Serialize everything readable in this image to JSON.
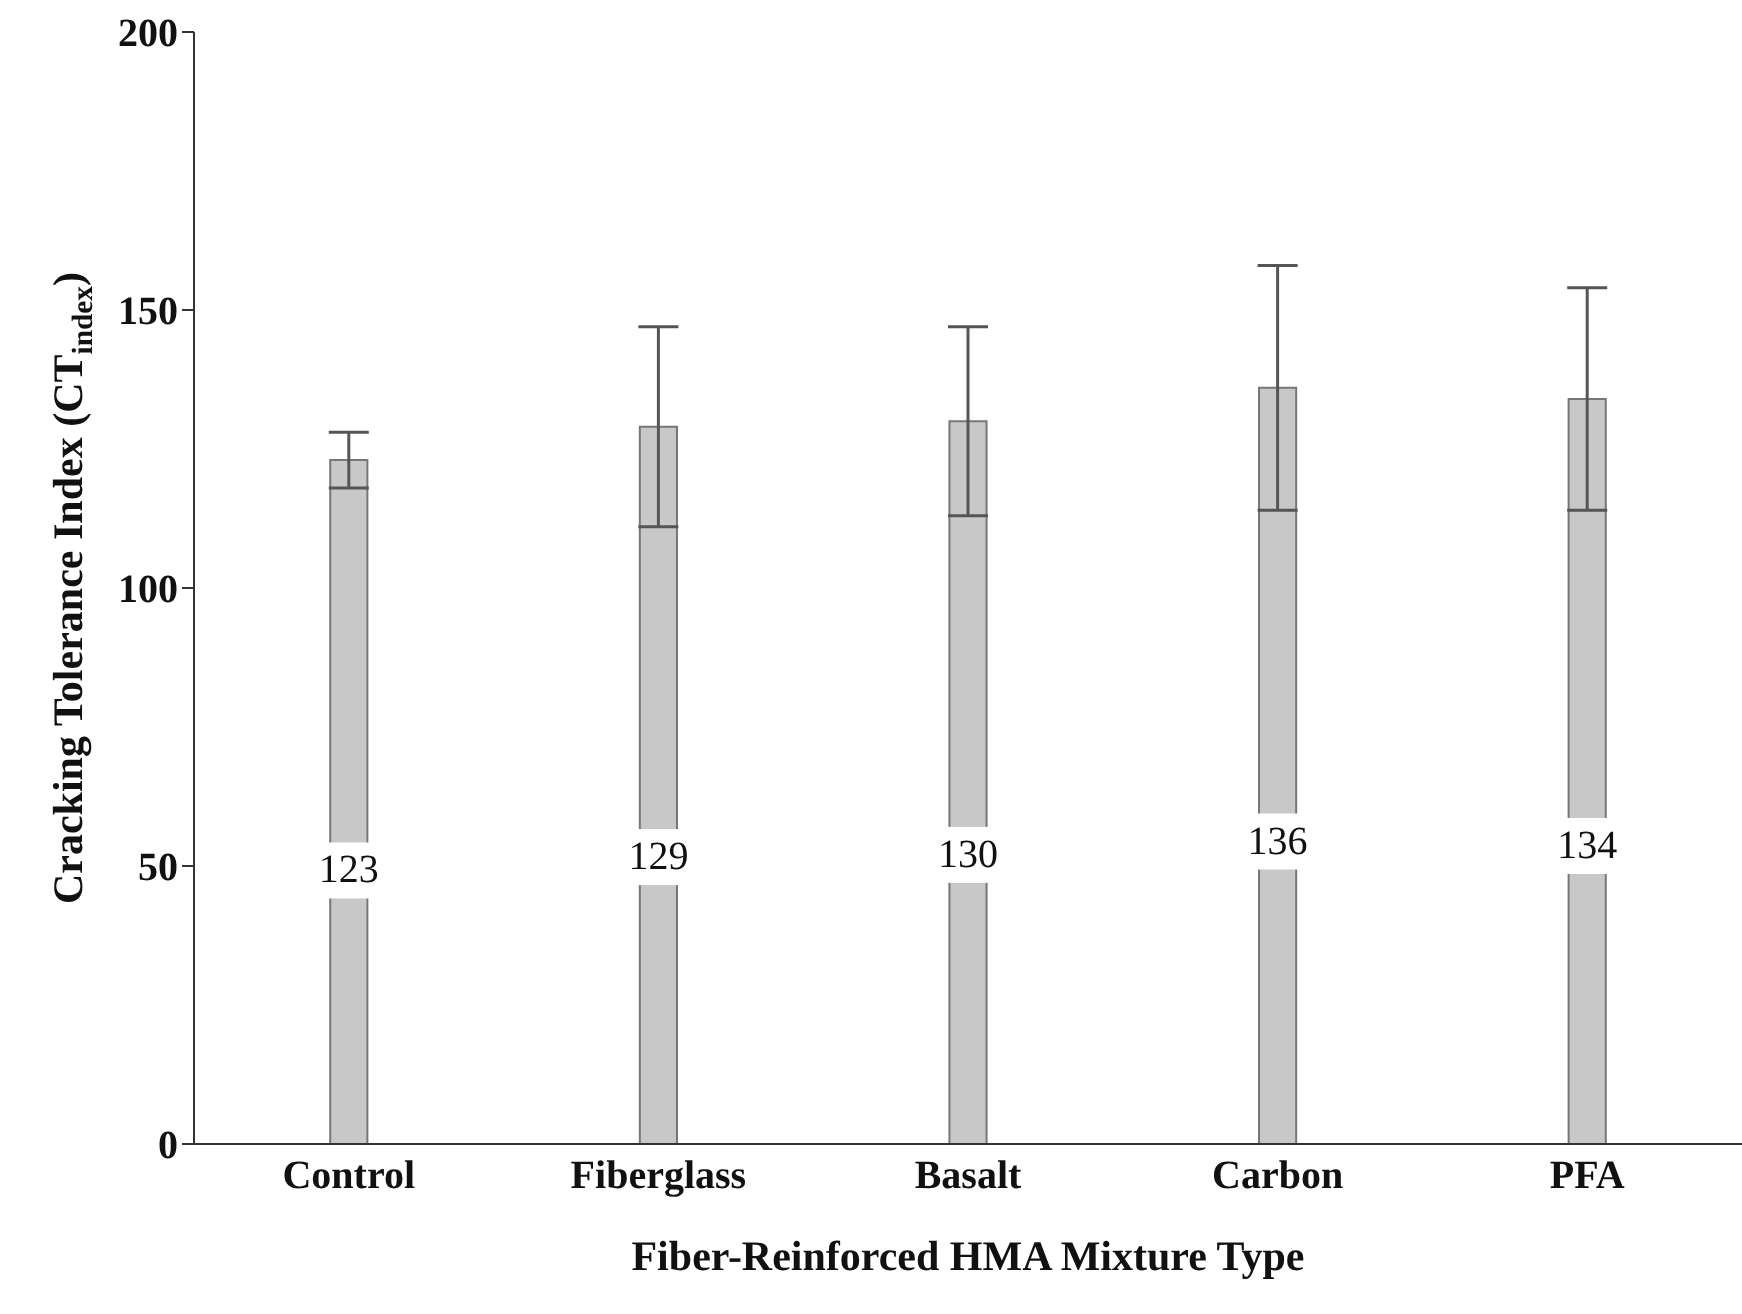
{
  "chart_data": {
    "type": "bar",
    "xlabel": "Fiber-Reinforced HMA Mixture Type",
    "ylabel": "Cracking Tolerance Index (CT$_{index}$)",
    "categories": [
      "Control",
      "Fiberglass",
      "Basalt",
      "Carbon",
      "PFA"
    ],
    "values": [
      123,
      129,
      130,
      136,
      134
    ],
    "errors": [
      5,
      18,
      17,
      22,
      20
    ],
    "color": "#c8c8c8",
    "ylim": [
      0,
      200
    ],
    "yticks": [
      0,
      50,
      100,
      150,
      200
    ],
    "data_labels": true,
    "grid": false,
    "legend": false
  }
}
